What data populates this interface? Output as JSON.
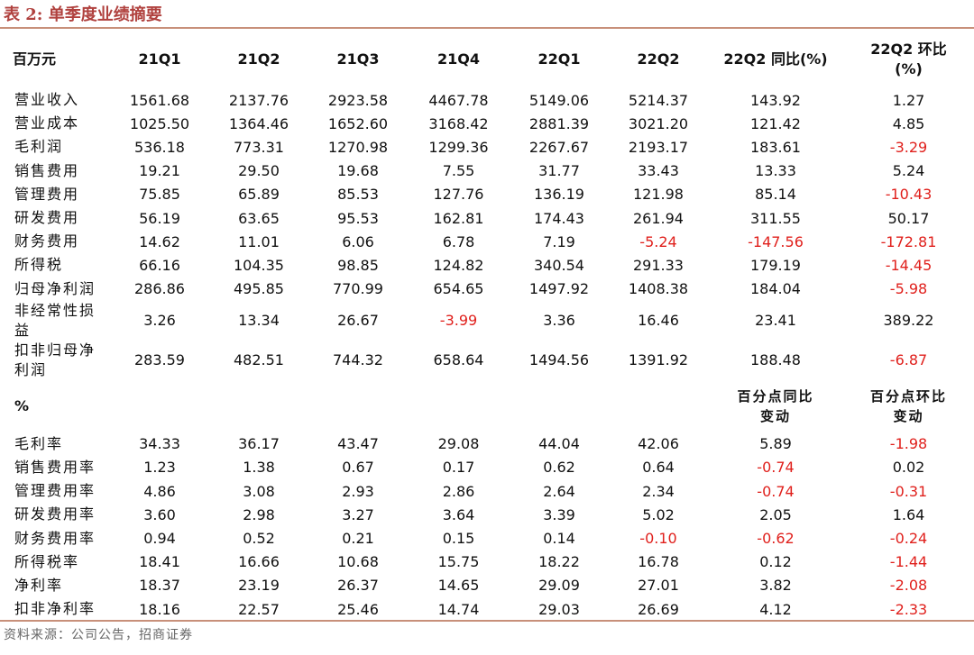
{
  "title": "表 2:  单季度业绩摘要",
  "colors": {
    "title": "#b0413e",
    "rule": "#c8907a",
    "negative": "#e0201c"
  },
  "headers": [
    "百万元",
    "21Q1",
    "21Q2",
    "21Q3",
    "21Q4",
    "22Q1",
    "22Q2",
    "22Q2 同比(%)",
    "22Q2 环比(%)"
  ],
  "section1": [
    {
      "label": "营业收入",
      "values": [
        "1561.68",
        "2137.76",
        "2923.58",
        "4467.78",
        "5149.06",
        "5214.37",
        "143.92",
        "1.27"
      ]
    },
    {
      "label": "营业成本",
      "values": [
        "1025.50",
        "1364.46",
        "1652.60",
        "3168.42",
        "2881.39",
        "3021.20",
        "121.42",
        "4.85"
      ]
    },
    {
      "label": "毛利润",
      "values": [
        "536.18",
        "773.31",
        "1270.98",
        "1299.36",
        "2267.67",
        "2193.17",
        "183.61",
        "-3.29"
      ]
    },
    {
      "label": "销售费用",
      "values": [
        "19.21",
        "29.50",
        "19.68",
        "7.55",
        "31.77",
        "33.43",
        "13.33",
        "5.24"
      ]
    },
    {
      "label": "管理费用",
      "values": [
        "75.85",
        "65.89",
        "85.53",
        "127.76",
        "136.19",
        "121.98",
        "85.14",
        "-10.43"
      ]
    },
    {
      "label": "研发费用",
      "values": [
        "56.19",
        "63.65",
        "95.53",
        "162.81",
        "174.43",
        "261.94",
        "311.55",
        "50.17"
      ]
    },
    {
      "label": "财务费用",
      "values": [
        "14.62",
        "11.01",
        "6.06",
        "6.78",
        "7.19",
        "-5.24",
        "-147.56",
        "-172.81"
      ]
    },
    {
      "label": "所得税",
      "values": [
        "66.16",
        "104.35",
        "98.85",
        "124.82",
        "340.54",
        "291.33",
        "179.19",
        "-14.45"
      ]
    },
    {
      "label": "归母净利润",
      "values": [
        "286.86",
        "495.85",
        "770.99",
        "654.65",
        "1497.92",
        "1408.38",
        "184.04",
        "-5.98"
      ]
    },
    {
      "label": "非经常性损益",
      "values": [
        "3.26",
        "13.34",
        "26.67",
        "-3.99",
        "3.36",
        "16.46",
        "23.41",
        "389.22"
      ]
    },
    {
      "label": "扣非归母净利润",
      "values": [
        "283.59",
        "482.51",
        "744.32",
        "658.64",
        "1494.56",
        "1391.92",
        "188.48",
        "-6.87"
      ]
    }
  ],
  "section2_header": {
    "label": "%",
    "col7": "百分点同比变动",
    "col8": "百分点环比变动"
  },
  "section2": [
    {
      "label": "毛利率",
      "values": [
        "34.33",
        "36.17",
        "43.47",
        "29.08",
        "44.04",
        "42.06",
        "5.89",
        "-1.98"
      ]
    },
    {
      "label": "销售费用率",
      "values": [
        "1.23",
        "1.38",
        "0.67",
        "0.17",
        "0.62",
        "0.64",
        "-0.74",
        "0.02"
      ]
    },
    {
      "label": "管理费用率",
      "values": [
        "4.86",
        "3.08",
        "2.93",
        "2.86",
        "2.64",
        "2.34",
        "-0.74",
        "-0.31"
      ]
    },
    {
      "label": "研发费用率",
      "values": [
        "3.60",
        "2.98",
        "3.27",
        "3.64",
        "3.39",
        "5.02",
        "2.05",
        "1.64"
      ]
    },
    {
      "label": "财务费用率",
      "values": [
        "0.94",
        "0.52",
        "0.21",
        "0.15",
        "0.14",
        "-0.10",
        "-0.62",
        "-0.24"
      ]
    },
    {
      "label": "所得税率",
      "values": [
        "18.41",
        "16.66",
        "10.68",
        "15.75",
        "18.22",
        "16.78",
        "0.12",
        "-1.44"
      ]
    },
    {
      "label": "净利率",
      "values": [
        "18.37",
        "23.19",
        "26.37",
        "14.65",
        "29.09",
        "27.01",
        "3.82",
        "-2.08"
      ]
    },
    {
      "label": "扣非净利率",
      "values": [
        "18.16",
        "22.57",
        "25.46",
        "14.74",
        "29.03",
        "26.69",
        "4.12",
        "-2.33"
      ]
    }
  ],
  "source": "资料来源：公司公告，招商证券"
}
